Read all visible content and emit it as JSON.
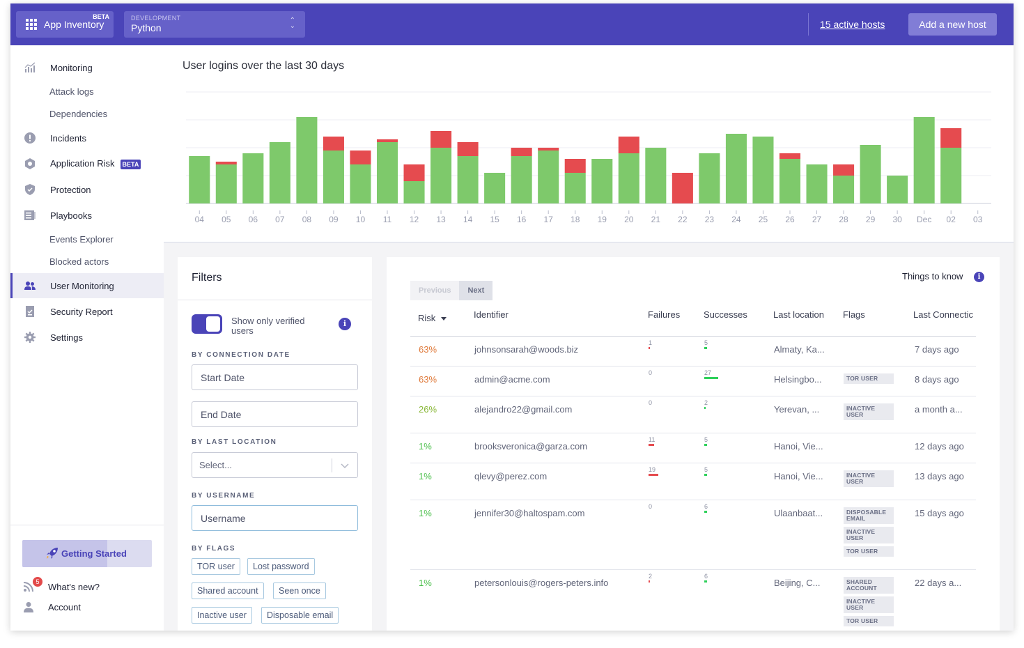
{
  "topbar": {
    "app_label": "App Inventory",
    "app_beta": "BETA",
    "env_label": "DEVELOPMENT",
    "env_value": "Python",
    "hosts_link": "15 active hosts",
    "add_host": "Add a new host"
  },
  "sidebar": {
    "items": [
      {
        "label": "Monitoring",
        "icon": "chart-icon"
      },
      {
        "label": "Attack logs"
      },
      {
        "label": "Dependencies"
      },
      {
        "label": "Incidents",
        "icon": "alert-icon"
      },
      {
        "label": "Application Risk",
        "badge": "BETA",
        "icon": "risk-icon"
      },
      {
        "label": "Protection",
        "icon": "shield-icon"
      },
      {
        "label": "Playbooks",
        "icon": "playbook-icon"
      },
      {
        "label": "Events Explorer"
      },
      {
        "label": "Blocked actors"
      },
      {
        "label": "User Monitoring",
        "icon": "users-icon",
        "active": true
      },
      {
        "label": "Security Report",
        "icon": "report-icon"
      },
      {
        "label": "Settings",
        "icon": "gear-icon"
      }
    ],
    "getting_started": "Getting Started",
    "whats_new": "What's new?",
    "whats_new_count": "5",
    "account": "Account"
  },
  "chart": {
    "title": "User logins over the last 30 days",
    "colors": {
      "success": "#7ec96b",
      "failure": "#e54b4f"
    }
  },
  "chart_data": {
    "type": "bar",
    "stacked": true,
    "categories": [
      "04",
      "05",
      "06",
      "07",
      "08",
      "09",
      "10",
      "11",
      "12",
      "13",
      "14",
      "15",
      "16",
      "17",
      "18",
      "19",
      "20",
      "21",
      "22",
      "23",
      "24",
      "25",
      "26",
      "27",
      "28",
      "29",
      "30",
      "Dec",
      "02",
      "03"
    ],
    "series": [
      {
        "name": "Successes",
        "values": [
          17,
          14,
          18,
          22,
          31,
          19,
          14,
          22,
          8,
          20,
          17,
          11,
          17,
          19,
          11,
          16,
          18,
          20,
          0,
          18,
          25,
          24,
          16,
          14,
          10,
          21,
          10,
          31,
          20,
          0
        ]
      },
      {
        "name": "Failures",
        "values": [
          0,
          1,
          0,
          0,
          0,
          5,
          5,
          1,
          6,
          6,
          5,
          0,
          3,
          1,
          5,
          0,
          6,
          0,
          11,
          0,
          0,
          0,
          2,
          0,
          4,
          0,
          0,
          0,
          7,
          0
        ]
      }
    ],
    "ylim": [
      0,
      40
    ],
    "grid": true,
    "xlabel": "",
    "ylabel": ""
  },
  "filters": {
    "title": "Filters",
    "verified_toggle": "Show only verified users",
    "by_connection_date": "BY CONNECTION DATE",
    "start_date": "Start Date",
    "end_date": "End Date",
    "by_last_location": "BY LAST LOCATION",
    "location_placeholder": "Select...",
    "by_username": "BY USERNAME",
    "username_placeholder": "Username",
    "by_flags": "BY FLAGS",
    "flags": [
      "TOR user",
      "Lost password",
      "Shared account",
      "Seen once",
      "Inactive user",
      "Disposable email"
    ]
  },
  "table": {
    "prev": "Previous",
    "next": "Next",
    "things_to_know": "Things to know",
    "headers": {
      "risk": "Risk",
      "identifier": "Identifier",
      "failures": "Failures",
      "successes": "Successes",
      "location": "Last location",
      "flags": "Flags",
      "last": "Last Connectic"
    },
    "colors": {
      "high": "#e07b3c",
      "medium": "#8ab83a",
      "low": "#4bbf4b",
      "fail_bar": "#e54b4f",
      "success_bar": "#2fd05b"
    },
    "rows": [
      {
        "risk": "63%",
        "level": "high",
        "identifier": "johnsonsarah@woods.biz",
        "failures": "1",
        "failures_n": 1,
        "successes": "5",
        "successes_n": 5,
        "location": "Almaty, Ka...",
        "flags": [],
        "last": "7 days ago"
      },
      {
        "risk": "63%",
        "level": "high",
        "identifier": "admin@acme.com",
        "failures": "0",
        "failures_n": 0,
        "successes": "27",
        "successes_n": 27,
        "location": "Helsingbo...",
        "flags": [
          "TOR USER"
        ],
        "last": "8 days ago"
      },
      {
        "risk": "26%",
        "level": "medium",
        "identifier": "alejandro22@gmail.com",
        "failures": "0",
        "failures_n": 0,
        "successes": "2",
        "successes_n": 2,
        "location": "Yerevan, ...",
        "flags": [
          "INACTIVE USER"
        ],
        "last": "a month a..."
      },
      {
        "risk": "1%",
        "level": "low",
        "identifier": "brooksveronica@garza.com",
        "failures": "11",
        "failures_n": 11,
        "successes": "5",
        "successes_n": 5,
        "location": "Hanoi, Vie...",
        "flags": [],
        "last": "12 days ago"
      },
      {
        "risk": "1%",
        "level": "low",
        "identifier": "qlevy@perez.com",
        "failures": "19",
        "failures_n": 19,
        "successes": "5",
        "successes_n": 5,
        "location": "Hanoi, Vie...",
        "flags": [
          "INACTIVE USER"
        ],
        "last": "13 days ago"
      },
      {
        "risk": "1%",
        "level": "low",
        "identifier": "jennifer30@haltospam.com",
        "failures": "0",
        "failures_n": 0,
        "successes": "6",
        "successes_n": 6,
        "location": "Ulaanbaat...",
        "flags": [
          "DISPOSABLE EMAIL",
          "INACTIVE USER",
          "TOR USER"
        ],
        "last": "15 days ago"
      },
      {
        "risk": "1%",
        "level": "low",
        "identifier": "petersonlouis@rogers-peters.info",
        "failures": "2",
        "failures_n": 2,
        "successes": "6",
        "successes_n": 6,
        "location": "Beijing, C...",
        "flags": [
          "SHARED ACCOUNT",
          "INACTIVE USER",
          "TOR USER"
        ],
        "last": "22 days a..."
      }
    ]
  }
}
